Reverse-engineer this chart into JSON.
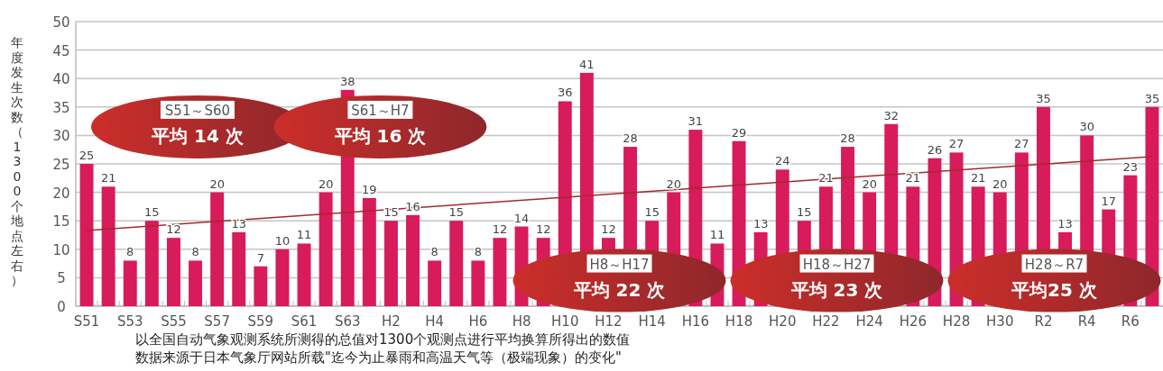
{
  "chart_data": {
    "type": "bar",
    "ylabel": "年度发生次数（1300个地点左右）",
    "categories": [
      "S51",
      null,
      "S53",
      null,
      "S55",
      null,
      "S57",
      null,
      "S59",
      null,
      "S61",
      null,
      "S63",
      null,
      "H2",
      null,
      "H4",
      null,
      "H6",
      null,
      "H8",
      null,
      "H10",
      null,
      "H12",
      null,
      "H14",
      null,
      "H16",
      null,
      "H18",
      null,
      "H20",
      null,
      "H22",
      null,
      "H24",
      null,
      "H26",
      null,
      "H28",
      null,
      "H30",
      null,
      "R2",
      null,
      "R4",
      null,
      "R6",
      null
    ],
    "series": [
      {
        "color": "#d81b5a",
        "values": [
          25,
          21,
          8,
          15,
          12,
          8,
          20,
          13,
          7,
          10,
          11,
          20,
          38,
          19,
          15,
          16,
          8,
          15,
          8,
          12,
          14,
          12,
          36,
          41,
          12,
          28,
          15,
          20,
          31,
          11,
          29,
          13,
          24,
          15,
          21,
          28,
          20,
          32,
          21,
          26,
          27,
          21,
          20,
          27,
          35,
          13,
          30,
          17,
          23,
          35
        ],
        "value_labels": [
          "25",
          "21",
          "8",
          "15",
          "12",
          "8",
          "20",
          "13",
          "7",
          "10",
          "11",
          "20",
          "38",
          "19",
          "15",
          "16",
          "8",
          "15",
          "8",
          "12",
          "14",
          "12",
          "36",
          "41",
          "12",
          "28",
          "15",
          "20",
          "31",
          "11",
          "29",
          "13",
          "24",
          "15",
          "21",
          "28",
          "20",
          "32",
          "21",
          "26",
          "27",
          "21",
          "20",
          "27",
          "35",
          "13",
          "30",
          "17",
          "23",
          "35"
        ]
      },
      {
        "type": "line",
        "color": "#a3282e",
        "values": [
          13.3,
          null,
          null,
          null,
          null,
          null,
          null,
          null,
          null,
          null,
          null,
          null,
          null,
          null,
          null,
          null,
          null,
          null,
          null,
          null,
          null,
          null,
          null,
          null,
          null,
          null,
          null,
          null,
          null,
          null,
          null,
          null,
          null,
          null,
          null,
          null,
          null,
          null,
          null,
          null,
          null,
          null,
          null,
          null,
          null,
          null,
          null,
          null,
          null,
          26.3
        ]
      }
    ],
    "ylim": [
      0,
      50
    ],
    "yticks": [
      0,
      5,
      10,
      15,
      20,
      25,
      30,
      35,
      40,
      45,
      50
    ],
    "grid": "y",
    "annotations": [
      "S51～S60",
      "平均 14 次",
      "S61～H7",
      "平均 16 次",
      "H8～H17",
      "平均 22 次",
      "H18～H27",
      "平均 23 次",
      "H28～R7",
      "平均25 次",
      "以全国自动气象观测系统所测得的总值对1300个观测点进行平均换算所得出的数值",
      "数据来源于日本气象厅网站所载\"迄今为止暴雨和高温天气等（极端现象）的变化\""
    ]
  }
}
